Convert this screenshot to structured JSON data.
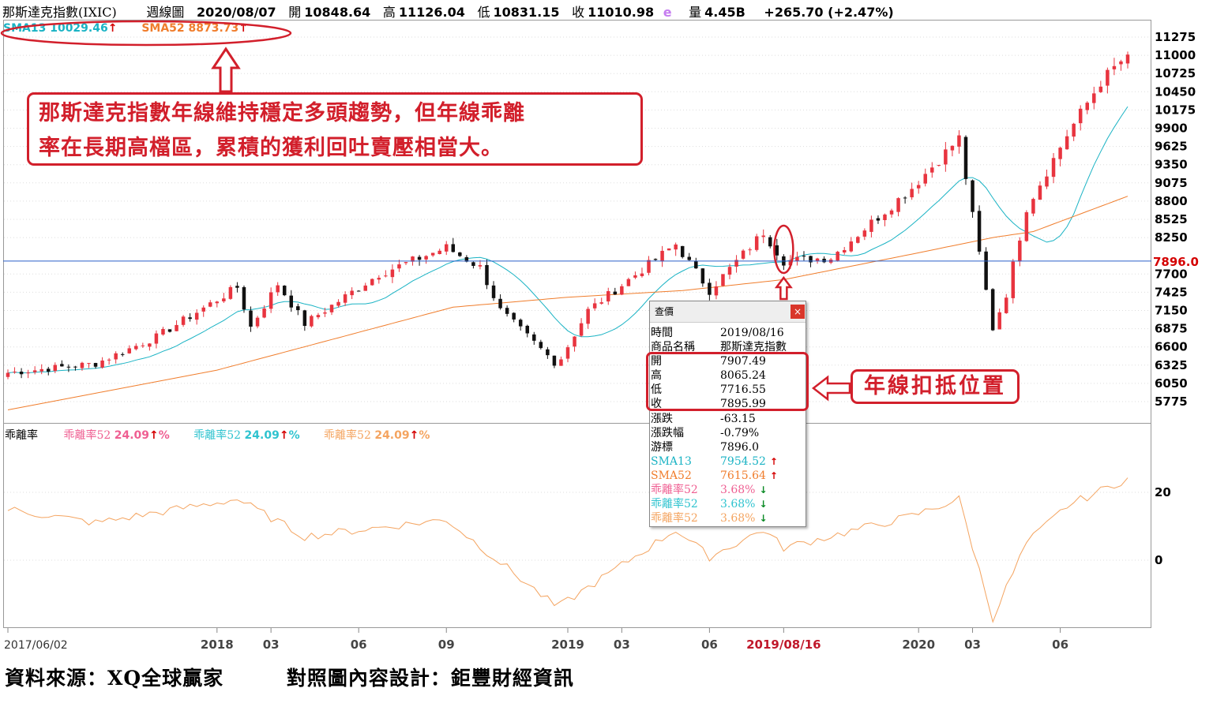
{
  "header": {
    "name": "那斯達克指數(IXIC)",
    "period": "週線圖",
    "date": "2020/08/07",
    "open_label": "開",
    "open": "10848.64",
    "high_label": "高",
    "high": "11126.04",
    "low_label": "低",
    "low": "10831.15",
    "close_label": "收",
    "close": "11010.98",
    "e_mark": "e",
    "volume_label": "量",
    "volume": "4.45B",
    "change": "+265.70 (+2.47%)"
  },
  "sma_legend": {
    "sma13": "SMA13 10029.46",
    "sma52": "SMA52 8873.73",
    "sma13_color": "#1ab3c4",
    "sma52_color": "#f07d2c"
  },
  "annotation_top": {
    "line1": "那斯達克指數年線維持穩定多頭趨勢，但年線乖離",
    "line2": "率在長期高檔區，累積的獲利回吐賣壓相當大。"
  },
  "annotation_right": "年線扣抵位置",
  "cursor_value": "7896.0",
  "dev_panel": {
    "title": "乖離率",
    "items": [
      {
        "name": "乖離率52",
        "value": "24.09",
        "unit": "%",
        "color": "#ef5f92"
      },
      {
        "name": "乖離率52",
        "value": "24.09",
        "unit": "%",
        "color": "#2fc3cf"
      },
      {
        "name": "乖離率52",
        "value": "24.09",
        "unit": "%",
        "color": "#f4a460"
      }
    ]
  },
  "popup": {
    "title": "查價",
    "close_icon": "×",
    "rows": [
      {
        "k": "時間",
        "v": "2019/08/16",
        "color": "#000"
      },
      {
        "k": "商品名稱",
        "v": "那斯達克指數",
        "color": "#000"
      },
      {
        "k": "開",
        "v": "7907.49",
        "color": "#000"
      },
      {
        "k": "高",
        "v": "8065.24",
        "color": "#000"
      },
      {
        "k": "低",
        "v": "7716.55",
        "color": "#000"
      },
      {
        "k": "收",
        "v": "7895.99",
        "color": "#000"
      },
      {
        "k": "漲跌",
        "v": "-63.15",
        "color": "#000"
      },
      {
        "k": "漲跌幅",
        "v": "-0.79%",
        "color": "#000"
      },
      {
        "k": "游標",
        "v": "7896.0",
        "color": "#000"
      },
      {
        "k": "SMA13",
        "v": "7954.52",
        "color": "#1ab3c4",
        "arrow": "up"
      },
      {
        "k": "SMA52",
        "v": "7615.64",
        "color": "#f07d2c",
        "arrow": "up"
      },
      {
        "k": "乖離率52",
        "v": "3.68%",
        "color": "#ef5f92",
        "arrow": "down"
      },
      {
        "k": "乖離率52",
        "v": "3.68%",
        "color": "#2fc3cf",
        "arrow": "down"
      },
      {
        "k": "乖離率52",
        "v": "3.68%",
        "color": "#f4a460",
        "arrow": "down"
      }
    ]
  },
  "footer": {
    "source": "資料來源：XQ全球贏家",
    "design": "對照圖內容設計：鉅豐財經資訊"
  },
  "colors": {
    "up": "#e8343f",
    "down": "#111111",
    "sma13": "#1ab3c4",
    "sma52": "#f07d2c",
    "dev": "#f4a460",
    "annot": "#d21f2b",
    "cursor": "#2a5fc9"
  },
  "chart_data": {
    "type": "candlestick",
    "price_ticks": [
      "11275",
      "11000",
      "10725",
      "10450",
      "10175",
      "9900",
      "9625",
      "9350",
      "9075",
      "8800",
      "8525",
      "8250",
      "7700",
      "7425",
      "7150",
      "6875",
      "6600",
      "6325",
      "6050",
      "5775"
    ],
    "dev_ticks": [
      "20",
      "0"
    ],
    "x_ticks": [
      "2017/06/02",
      "2018",
      "03",
      "06",
      "09",
      "2019",
      "03",
      "06",
      "2019/08/16",
      "2020",
      "03",
      "06"
    ],
    "price_anchors": [
      [
        "2017-06-02",
        6210
      ],
      [
        "2017-09-01",
        6350
      ],
      [
        "2017-11-03",
        6750
      ],
      [
        "2018-01-26",
        7500
      ],
      [
        "2018-02-09",
        6900
      ],
      [
        "2018-03-09",
        7550
      ],
      [
        "2018-04-06",
        6950
      ],
      [
        "2018-06-22",
        7700
      ],
      [
        "2018-08-31",
        8100
      ],
      [
        "2018-10-05",
        7800
      ],
      [
        "2018-10-26",
        7150
      ],
      [
        "2018-12-24",
        6330
      ],
      [
        "2019-01-25",
        7150
      ],
      [
        "2019-04-26",
        8150
      ],
      [
        "2019-05-31",
        7450
      ],
      [
        "2019-07-26",
        8330
      ],
      [
        "2019-08-16",
        7896
      ],
      [
        "2019-10-04",
        7950
      ],
      [
        "2019-12-27",
        9000
      ],
      [
        "2020-02-14",
        9750
      ],
      [
        "2020-02-28",
        8570
      ],
      [
        "2020-03-20",
        6880
      ],
      [
        "2020-04-03",
        7400
      ],
      [
        "2020-04-24",
        8700
      ],
      [
        "2020-06-05",
        9800
      ],
      [
        "2020-07-10",
        10600
      ],
      [
        "2020-08-07",
        11011
      ]
    ],
    "sma52_anchors": [
      [
        "2017-06-02",
        5650
      ],
      [
        "2018-01-05",
        6250
      ],
      [
        "2018-09-07",
        7200
      ],
      [
        "2019-01-04",
        7350
      ],
      [
        "2019-05-03",
        7450
      ],
      [
        "2019-08-16",
        7616
      ],
      [
        "2019-12-27",
        8000
      ],
      [
        "2020-03-20",
        8250
      ],
      [
        "2020-05-01",
        8340
      ],
      [
        "2020-08-07",
        8874
      ]
    ],
    "dev_anchors": [
      [
        "2017-06-02",
        15
      ],
      [
        "2017-09-01",
        11
      ],
      [
        "2018-01-26",
        18
      ],
      [
        "2018-04-06",
        7
      ],
      [
        "2018-08-31",
        12
      ],
      [
        "2018-12-24",
        -14
      ],
      [
        "2019-04-26",
        9
      ],
      [
        "2019-05-31",
        1
      ],
      [
        "2019-07-26",
        9
      ],
      [
        "2019-08-16",
        3.68
      ],
      [
        "2019-12-27",
        13
      ],
      [
        "2020-02-14",
        18
      ],
      [
        "2020-03-20",
        -17
      ],
      [
        "2020-04-24",
        5
      ],
      [
        "2020-06-05",
        16
      ],
      [
        "2020-08-07",
        24.09
      ]
    ]
  }
}
